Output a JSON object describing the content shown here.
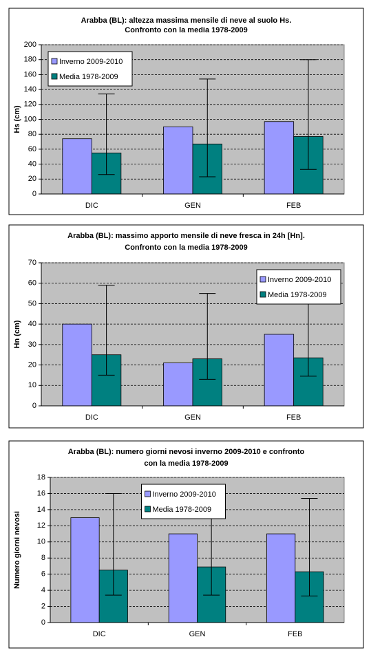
{
  "chart_data": [
    {
      "type": "bar",
      "title": [
        "Arabba (BL): altezza massima mensile di neve al suolo Hs.",
        "Confronto con la media 1978-2009"
      ],
      "y_label": "Hs (cm)",
      "categories": [
        "DIC",
        "GEN",
        "FEB"
      ],
      "series": [
        {
          "name": "Inverno 2009-2010",
          "color": "#9999ff",
          "values": [
            74,
            90,
            97
          ]
        },
        {
          "name": "Media 1978-2009",
          "color": "#008080",
          "values": [
            55,
            67,
            77
          ],
          "min": [
            26,
            23,
            33
          ],
          "max": [
            134,
            154,
            180
          ]
        }
      ],
      "ylim": [
        0,
        200
      ],
      "yticks": [
        0,
        20,
        40,
        60,
        80,
        100,
        120,
        140,
        160,
        180,
        200
      ],
      "grid": true,
      "legend": "upper left"
    },
    {
      "type": "bar",
      "title": [
        "Arabba (BL): massimo apporto mensile di neve fresca in 24h [Hn].",
        "Confronto con la media 1978-2009"
      ],
      "y_label": "Hn (cm)",
      "categories": [
        "DIC",
        "GEN",
        "FEB"
      ],
      "series": [
        {
          "name": "Inverno 2009-2010",
          "color": "#9999ff",
          "values": [
            40,
            21,
            35
          ]
        },
        {
          "name": "Media 1978-2009",
          "color": "#008080",
          "values": [
            25,
            23,
            23.5
          ],
          "min": [
            15,
            13,
            14.5
          ],
          "max": [
            59,
            55,
            50.5
          ]
        }
      ],
      "ylim": [
        0,
        70
      ],
      "yticks": [
        0,
        10,
        20,
        30,
        40,
        50,
        60,
        70
      ],
      "grid": true,
      "legend": "upper right"
    },
    {
      "type": "bar",
      "title": [
        "Arabba (BL): numero giorni nevosi inverno 2009-2010 e confronto",
        "con la media 1978-2009"
      ],
      "y_label": "Numero giorni nevosi",
      "categories": [
        "DIC",
        "GEN",
        "FEB"
      ],
      "series": [
        {
          "name": "Inverno 2009-2010",
          "color": "#9999ff",
          "values": [
            13,
            11,
            11
          ]
        },
        {
          "name": "Media 1978-2009",
          "color": "#008080",
          "values": [
            6.5,
            6.9,
            6.3
          ],
          "min": [
            3.4,
            3.4,
            3.3
          ],
          "max": [
            16,
            17,
            15.4
          ]
        }
      ],
      "ylim": [
        0,
        18
      ],
      "yticks": [
        0,
        2,
        4,
        6,
        8,
        10,
        12,
        14,
        16,
        18
      ],
      "grid": true,
      "legend": "upper center"
    }
  ]
}
